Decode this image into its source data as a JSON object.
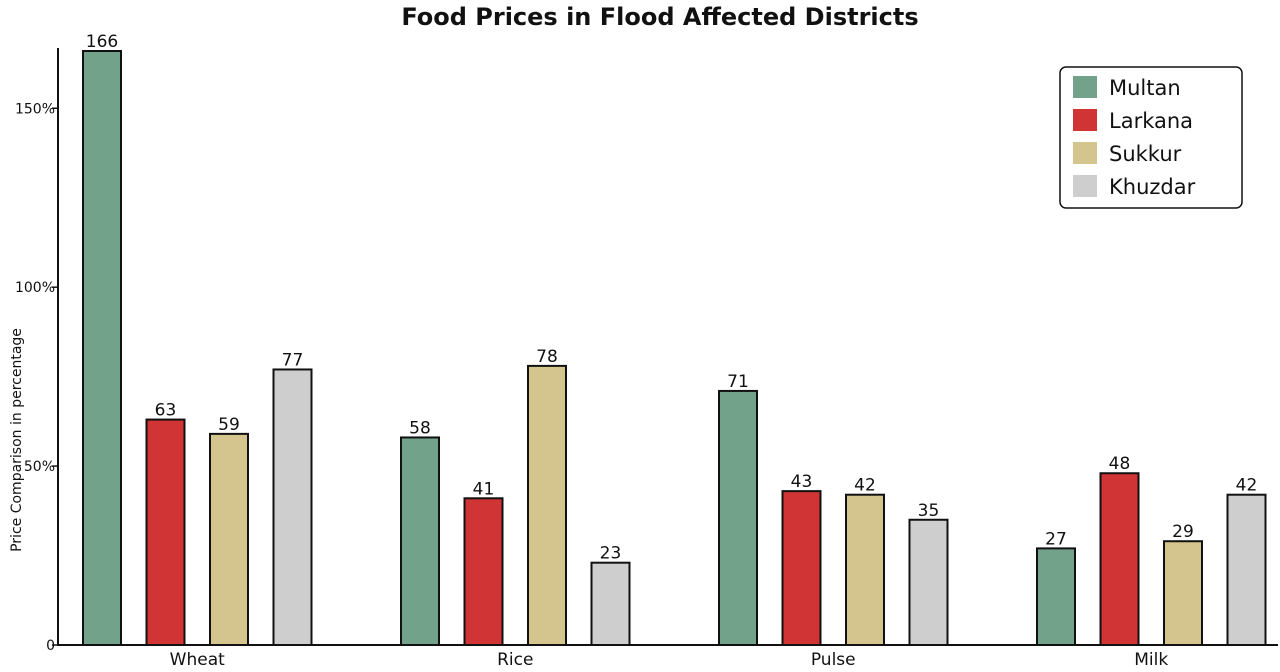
{
  "chart_data": {
    "type": "bar",
    "title": "Food Prices in Flood Affected Districts",
    "xlabel": "",
    "ylabel": "Price Comparison in percentage",
    "categories": [
      "Wheat",
      "Rice",
      "Pulse",
      "Milk"
    ],
    "series": [
      {
        "name": "Multan",
        "color": "#72a38a",
        "values": [
          166,
          58,
          71,
          27
        ]
      },
      {
        "name": "Larkana",
        "color": "#d03434",
        "values": [
          63,
          41,
          43,
          48
        ]
      },
      {
        "name": "Sukkur",
        "color": "#d4c48e",
        "values": [
          59,
          78,
          42,
          29
        ]
      },
      {
        "name": "Khuzdar",
        "color": "#cecece",
        "values": [
          77,
          23,
          35,
          42
        ]
      }
    ],
    "ylim": [
      0,
      166
    ],
    "yticks": [
      {
        "value": 0,
        "label": "0"
      },
      {
        "value": 50,
        "label": "50%"
      },
      {
        "value": 100,
        "label": "100%"
      },
      {
        "value": 150,
        "label": "150%"
      }
    ],
    "grid": false,
    "legend_position": "top-right",
    "data_labels": true
  }
}
